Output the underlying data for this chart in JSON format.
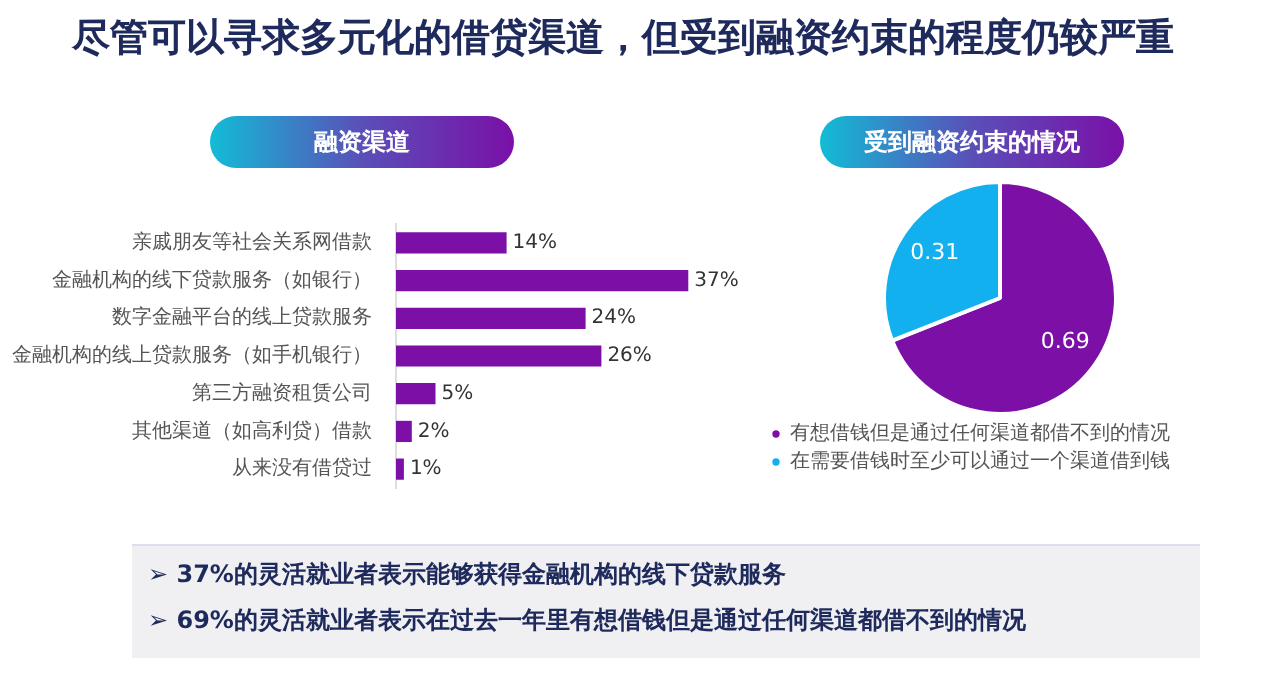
{
  "chart_data": [
    {
      "type": "bar",
      "title": "尽管可以寻求多元化的借贷渠道，但受到融资约束的程度仍较严重",
      "subtitle": "融资渠道",
      "orientation": "horizontal",
      "color": "#7b0fa6",
      "categories": [
        "亲戚朋友等社会关系网借款",
        "金融机构的线下贷款服务（如银行）",
        "数字金融平台的线上贷款服务",
        "金融机构的线上贷款服务（如手机银行）",
        "第三方融资租赁公司",
        "其他渠道（如高利贷）借款",
        "从来没有借贷过"
      ],
      "values": [
        14,
        37,
        24,
        26,
        5,
        2,
        1
      ],
      "value_labels": [
        "14%",
        "37%",
        "24%",
        "26%",
        "5%",
        "2%",
        "1%"
      ],
      "tick_labels": "y",
      "annotations": [
        "➢ 37%的灵活就业者表示能够获得金融机构的线下贷款服务",
        "➢ 69%的灵活就业者表示在过去一年里有想借钱但是通过任何渠道都借不到的情况"
      ]
    },
    {
      "type": "pie",
      "title": "受到融资约束的情况",
      "categories": [
        "有想借钱但是通过任何渠道都借不到的情况",
        "在需要借钱时至少可以通过一个渠道借到钱"
      ],
      "values": [
        0.69,
        0.31
      ],
      "colors": [
        "#7b0fa6",
        "#12b0ee"
      ],
      "data_labels": true,
      "legend": "bottom"
    }
  ]
}
